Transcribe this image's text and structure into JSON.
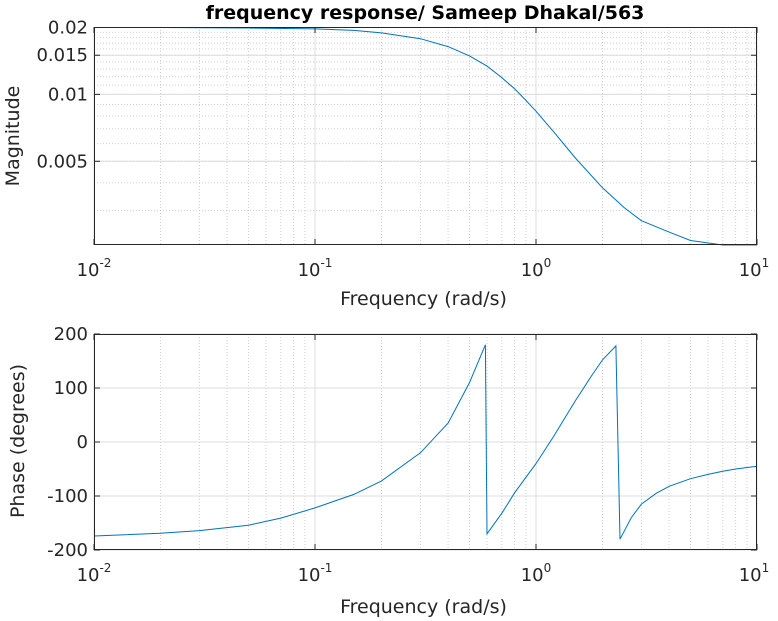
{
  "figure_title": "frequency response/ Sameep Dhakal/563",
  "colors": {
    "series": "#0072bd",
    "axis": "#262626",
    "grid": "#dcdcdc"
  },
  "chart_data": [
    {
      "type": "line",
      "xlabel": "Frequency (rad/s)",
      "ylabel": "Magnitude",
      "xscale": "log",
      "yscale": "log",
      "xlim": [
        0.01,
        10
      ],
      "ylim": [
        0.0021,
        0.0201
      ],
      "grid": true,
      "xticks": [
        {
          "value": 0.01,
          "base": "10",
          "exp": "-2"
        },
        {
          "value": 0.1,
          "base": "10",
          "exp": "-1"
        },
        {
          "value": 1,
          "base": "10",
          "exp": "0"
        },
        {
          "value": 10,
          "base": "10",
          "exp": "1"
        }
      ],
      "yticks": [
        {
          "value": 0.005,
          "label": "0.005"
        },
        {
          "value": 0.01,
          "label": "0.01"
        },
        {
          "value": 0.015,
          "label": "0.015"
        },
        {
          "value": 0.02,
          "label": "0.02"
        }
      ],
      "series": [
        {
          "x": [
            0.01,
            0.02,
            0.05,
            0.1,
            0.15,
            0.2,
            0.3,
            0.4,
            0.5,
            0.6,
            0.7,
            0.8,
            0.9,
            1.0,
            1.2,
            1.5,
            2.0,
            2.5,
            3.0,
            4.0,
            5.0,
            7.0,
            10.0
          ],
          "y": [
            0.02,
            0.02,
            0.0199,
            0.0197,
            0.0194,
            0.0189,
            0.0178,
            0.0164,
            0.0149,
            0.0134,
            0.0119,
            0.0106,
            0.0094,
            0.0084,
            0.0068,
            0.0052,
            0.0038,
            0.0031,
            0.0027,
            0.0024,
            0.0022,
            0.0021,
            0.0021
          ]
        }
      ]
    },
    {
      "type": "line",
      "xlabel": "Frequency (rad/s)",
      "ylabel": "Phase (degrees)",
      "xscale": "log",
      "yscale": "linear",
      "xlim": [
        0.01,
        10
      ],
      "ylim": [
        -200,
        200
      ],
      "grid": true,
      "xticks": [
        {
          "value": 0.01,
          "base": "10",
          "exp": "-2"
        },
        {
          "value": 0.1,
          "base": "10",
          "exp": "-1"
        },
        {
          "value": 1,
          "base": "10",
          "exp": "0"
        },
        {
          "value": 10,
          "base": "10",
          "exp": "1"
        }
      ],
      "yticks": [
        {
          "value": -200,
          "label": "-200"
        },
        {
          "value": -100,
          "label": "-100"
        },
        {
          "value": 0,
          "label": "0"
        },
        {
          "value": 100,
          "label": "100"
        },
        {
          "value": 200,
          "label": "200"
        }
      ],
      "series": [
        {
          "x": [
            0.01,
            0.02,
            0.03,
            0.05,
            0.07,
            0.1,
            0.15,
            0.2,
            0.3,
            0.4,
            0.5,
            0.59,
            0.59,
            0.6,
            0.7,
            0.8,
            1.0,
            1.2,
            1.5,
            1.8,
            2.0,
            2.3,
            2.3,
            2.4,
            2.7,
            3.0,
            3.5,
            4.0,
            5.0,
            6.0,
            7.0,
            8.0,
            10.0
          ],
          "y": [
            -174,
            -169,
            -164,
            -154,
            -141,
            -122,
            -97,
            -72,
            -20,
            35,
            110,
            180,
            180,
            -170,
            -132,
            -94,
            -40,
            10,
            75,
            125,
            152,
            178,
            178,
            -180,
            -140,
            -115,
            -95,
            -82,
            -68,
            -60,
            -54,
            -50,
            -45
          ]
        }
      ]
    }
  ]
}
